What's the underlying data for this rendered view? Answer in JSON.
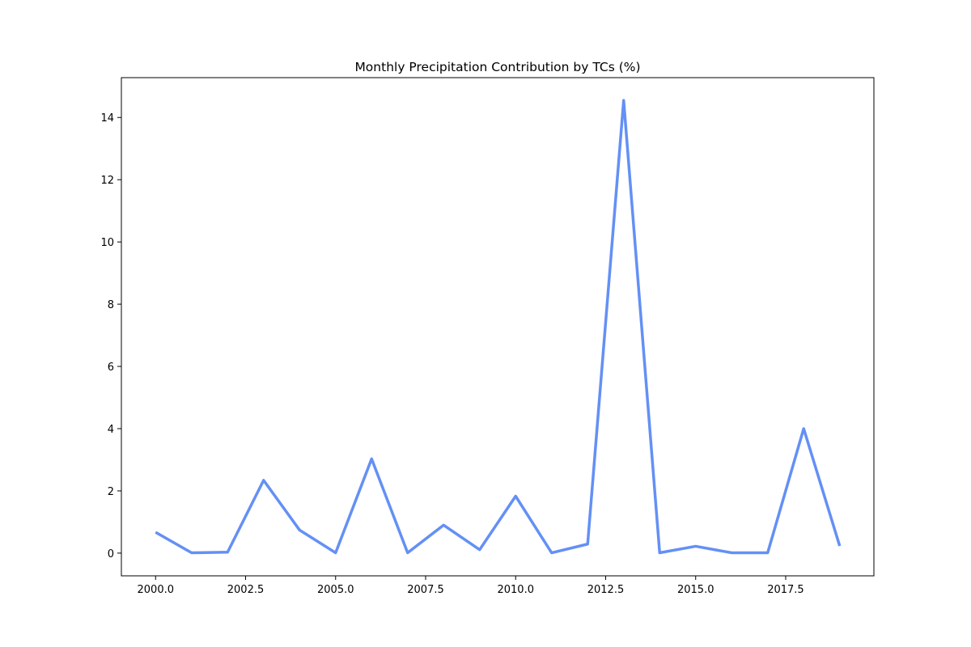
{
  "chart_data": {
    "type": "line",
    "title": "Monthly Precipitation Contribution by TCs (%)",
    "xlabel": "",
    "ylabel": "",
    "xlim": [
      1999.05,
      2019.95
    ],
    "ylim": [
      -0.73,
      15.28
    ],
    "x_ticks": [
      2000,
      2002.5,
      2005,
      2007.5,
      2010,
      2012.5,
      2015,
      2017.5
    ],
    "x_tick_labels": [
      "2000.0",
      "2002.5",
      "2005.0",
      "2007.5",
      "2010.0",
      "2012.5",
      "2015.0",
      "2017.5"
    ],
    "y_ticks": [
      0,
      2,
      4,
      6,
      8,
      10,
      12,
      14
    ],
    "y_tick_labels": [
      "0",
      "2",
      "4",
      "6",
      "8",
      "10",
      "12",
      "14"
    ],
    "grid": false,
    "line_color": "#6490f5",
    "series": [
      {
        "x": [
          2000,
          2001,
          2002,
          2003,
          2004,
          2005,
          2006,
          2007,
          2008,
          2009,
          2010,
          2011,
          2012,
          2013,
          2014,
          2015,
          2016,
          2017,
          2018,
          2019
        ],
        "values": [
          0.67,
          0.01,
          0.03,
          2.34,
          0.74,
          0.01,
          3.03,
          0.01,
          0.9,
          0.11,
          1.83,
          0.01,
          0.29,
          14.55,
          0.01,
          0.22,
          0.01,
          0.01,
          4.0,
          0.23
        ]
      }
    ]
  }
}
